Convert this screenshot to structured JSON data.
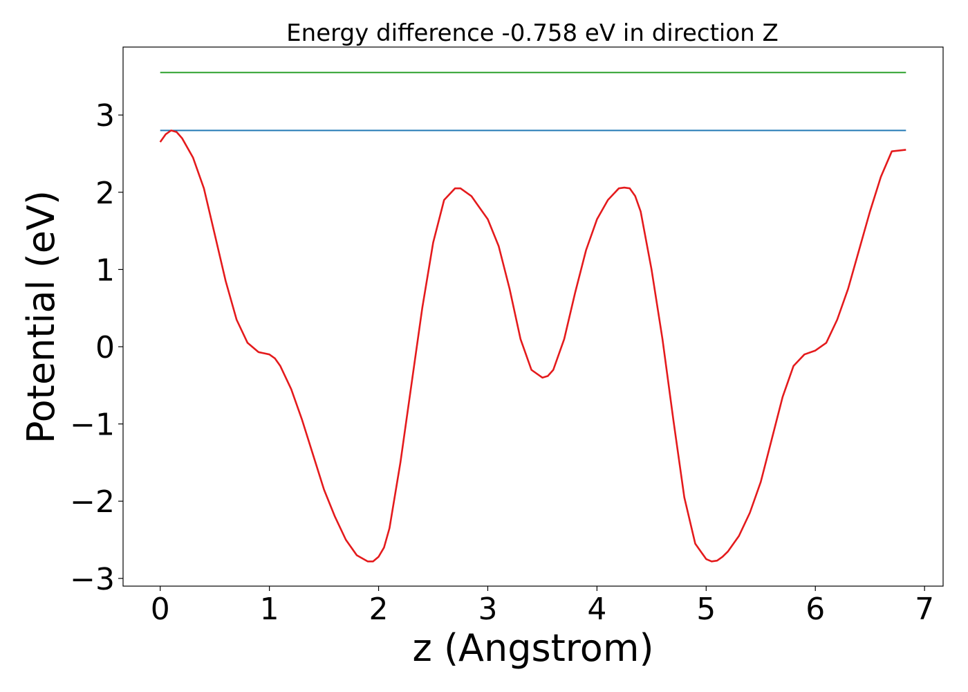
{
  "chart_data": {
    "type": "line",
    "title": "Energy difference -0.758 eV in direction Z",
    "xlabel": "z (Angstrom)",
    "ylabel": "Potential (eV)",
    "xlim": [
      -0.34,
      7.17
    ],
    "ylim": [
      -3.1,
      3.88
    ],
    "xticks": [
      0,
      1,
      2,
      3,
      4,
      5,
      6,
      7
    ],
    "xtick_labels": [
      "0",
      "1",
      "2",
      "3",
      "4",
      "5",
      "6",
      "7"
    ],
    "yticks": [
      -3,
      -2,
      -1,
      0,
      1,
      2,
      3
    ],
    "ytick_labels": [
      "−3",
      "−2",
      "−1",
      "0",
      "1",
      "2",
      "3"
    ],
    "grid": false,
    "legend": "none",
    "series": [
      {
        "color": "#2ca02c",
        "x": [
          0,
          6.83
        ],
        "y": [
          3.55,
          3.55
        ]
      },
      {
        "color": "#1f77b4",
        "x": [
          0,
          6.83
        ],
        "y": [
          2.8,
          2.8
        ]
      },
      {
        "color": "#e41a1c",
        "x": [
          0,
          0.05,
          0.1,
          0.15,
          0.2,
          0.3,
          0.4,
          0.5,
          0.6,
          0.7,
          0.8,
          0.9,
          1.0,
          1.05,
          1.1,
          1.2,
          1.3,
          1.4,
          1.5,
          1.6,
          1.7,
          1.8,
          1.9,
          1.95,
          2.0,
          2.05,
          2.1,
          2.2,
          2.3,
          2.4,
          2.5,
          2.6,
          2.7,
          2.75,
          2.8,
          2.85,
          2.9,
          3.0,
          3.1,
          3.2,
          3.3,
          3.4,
          3.5,
          3.55,
          3.6,
          3.7,
          3.8,
          3.9,
          4.0,
          4.1,
          4.2,
          4.25,
          4.3,
          4.35,
          4.4,
          4.5,
          4.6,
          4.7,
          4.8,
          4.9,
          5.0,
          5.05,
          5.1,
          5.15,
          5.2,
          5.3,
          5.4,
          5.5,
          5.6,
          5.7,
          5.8,
          5.9,
          6.0,
          6.1,
          6.2,
          6.3,
          6.4,
          6.5,
          6.6,
          6.7,
          6.83
        ],
        "y": [
          2.65,
          2.75,
          2.8,
          2.78,
          2.7,
          2.45,
          2.05,
          1.45,
          0.85,
          0.35,
          0.05,
          -0.07,
          -0.1,
          -0.15,
          -0.25,
          -0.55,
          -0.95,
          -1.4,
          -1.85,
          -2.2,
          -2.5,
          -2.7,
          -2.78,
          -2.78,
          -2.72,
          -2.6,
          -2.35,
          -1.5,
          -0.5,
          0.5,
          1.35,
          1.9,
          2.05,
          2.05,
          2.0,
          1.95,
          1.85,
          1.65,
          1.3,
          0.75,
          0.1,
          -0.3,
          -0.4,
          -0.38,
          -0.3,
          0.1,
          0.7,
          1.25,
          1.65,
          1.9,
          2.05,
          2.06,
          2.05,
          1.95,
          1.75,
          1.0,
          0.1,
          -0.95,
          -1.95,
          -2.55,
          -2.75,
          -2.78,
          -2.77,
          -2.72,
          -2.65,
          -2.45,
          -2.15,
          -1.75,
          -1.2,
          -0.65,
          -0.25,
          -0.1,
          -0.05,
          0.05,
          0.35,
          0.75,
          1.25,
          1.75,
          2.2,
          2.53,
          2.55
        ]
      }
    ]
  }
}
